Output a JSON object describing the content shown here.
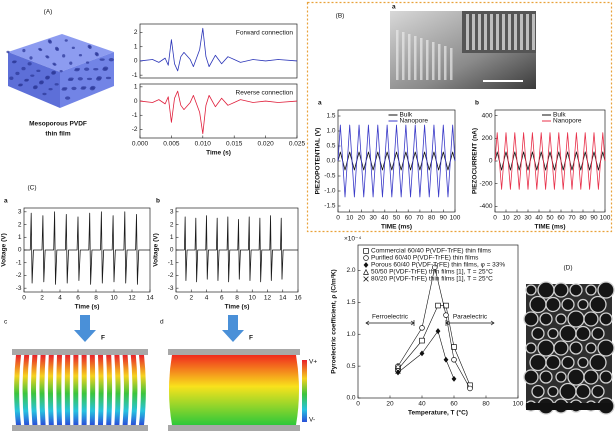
{
  "panel_labels": {
    "A": "(A)",
    "B": "(B)",
    "C": "(C)",
    "D": "(D)",
    "B_image": "a",
    "C_c": "c",
    "C_d": "d"
  },
  "film_caption": [
    "Mesoporous PVDF",
    "thin film"
  ],
  "force_labels": [
    "F",
    "F"
  ],
  "colorbar_labels": [
    "V+",
    "V-"
  ],
  "chart_data": [
    {
      "type": "line",
      "xlim": [
        0,
        0.025
      ],
      "ylim": [
        -1.2,
        2.6
      ],
      "yticks": [
        -1,
        0,
        1,
        2
      ],
      "series": [
        {
          "name": "Forward connection",
          "color": "#2b35b8",
          "x": [
            0,
            0.002,
            0.003,
            0.004,
            0.0045,
            0.005,
            0.0055,
            0.006,
            0.0065,
            0.007,
            0.008,
            0.0085,
            0.009,
            0.0095,
            0.01,
            0.0105,
            0.011,
            0.012,
            0.013,
            0.014,
            0.015,
            0.016,
            0.018,
            0.02,
            0.022,
            0.025
          ],
          "values": [
            0,
            0.1,
            -0.1,
            0.2,
            -0.3,
            1.5,
            -0.2,
            -0.7,
            0.3,
            0.6,
            0.1,
            -0.4,
            0.2,
            0.8,
            2.3,
            0.3,
            -0.4,
            0.4,
            -0.2,
            0.3,
            0.1,
            -0.1,
            0.1,
            0,
            0.1,
            0
          ]
        }
      ]
    },
    {
      "type": "line",
      "xlabel": "Time (s)",
      "xlim": [
        0,
        0.025
      ],
      "ylim": [
        -2.6,
        1.2
      ],
      "yticks": [
        -2,
        -1,
        0,
        1
      ],
      "xticks": [
        {
          "value": 0,
          "label": "0.000"
        },
        0.005,
        {
          "value": 0.01,
          "label": "0.010"
        },
        0.015,
        {
          "value": 0.02,
          "label": "0.020"
        },
        0.025
      ],
      "series": [
        {
          "name": "Reverse connection",
          "color": "#e0203c",
          "x": [
            0,
            0.002,
            0.003,
            0.004,
            0.0045,
            0.005,
            0.0055,
            0.006,
            0.0065,
            0.007,
            0.008,
            0.0085,
            0.009,
            0.0095,
            0.01,
            0.0105,
            0.011,
            0.012,
            0.013,
            0.014,
            0.015,
            0.016,
            0.018,
            0.02,
            0.022,
            0.025
          ],
          "values": [
            0,
            -0.1,
            0.1,
            -0.2,
            0.3,
            -1.5,
            0.2,
            0.7,
            -0.3,
            -0.6,
            -0.1,
            0.4,
            -0.2,
            -0.8,
            -2.3,
            -0.3,
            0.4,
            -0.4,
            0.2,
            -0.3,
            -0.1,
            0.1,
            -0.1,
            0,
            -0.1,
            0
          ]
        }
      ]
    },
    {
      "type": "line",
      "label": "a",
      "xlabel": "TIME (ms)",
      "ylabel": "PIEZOPOTENTIAL (V)",
      "legend": "top",
      "xlim": [
        0,
        100
      ],
      "xticks": [
        0,
        10,
        20,
        30,
        40,
        50,
        60,
        70,
        80,
        90,
        100
      ],
      "ylim": [
        -1.7,
        1.7
      ],
      "yticks": [
        -1.5,
        {
          "value": -1,
          "label": "-1.0"
        },
        -0.5,
        {
          "value": 0,
          "label": "0.0"
        },
        0.5,
        {
          "value": 1,
          "label": "1.0"
        },
        1.5
      ],
      "x": [
        0,
        2,
        4,
        6,
        8,
        10,
        12,
        14,
        16,
        18,
        20,
        22,
        24,
        26,
        28,
        30,
        32,
        34,
        36,
        38,
        40,
        42,
        44,
        46,
        48,
        50,
        52,
        54,
        56,
        58,
        60,
        62,
        64,
        66,
        68,
        70,
        72,
        74,
        76,
        78,
        80,
        82,
        84,
        86,
        88,
        90,
        92,
        94,
        96,
        98,
        100
      ],
      "series": [
        {
          "name": "Bulk",
          "color": "#111111",
          "values": [
            0,
            0.3,
            0,
            -0.3,
            0,
            0.3,
            0,
            -0.3,
            0,
            0.3,
            0,
            -0.3,
            0,
            0.3,
            0,
            -0.3,
            0,
            0.3,
            0,
            -0.3,
            0,
            0.3,
            0,
            -0.3,
            0,
            0.3,
            0,
            -0.3,
            0,
            0.3,
            0,
            -0.3,
            0,
            0.3,
            0,
            -0.3,
            0,
            0.3,
            0,
            -0.3,
            0,
            0.3,
            0,
            -0.3,
            0,
            0.3,
            0,
            -0.3,
            0,
            0.3,
            0
          ]
        },
        {
          "name": "Nanopore",
          "color": "#3a3ac8",
          "values": [
            0,
            1.2,
            0,
            -1.2,
            0,
            1.2,
            0,
            -1.2,
            0,
            1.2,
            0,
            -1.2,
            0,
            1.2,
            0,
            -1.2,
            0,
            1.2,
            0,
            -1.2,
            0,
            1.2,
            0,
            -1.2,
            0,
            1.2,
            0,
            -1.2,
            0,
            1.2,
            0,
            -1.2,
            0,
            1.2,
            0,
            -1.2,
            0,
            1.2,
            0,
            -1.2,
            0,
            1.2,
            0,
            -1.2,
            0,
            1.2,
            0,
            -1.2,
            0,
            1.2,
            0
          ]
        }
      ]
    },
    {
      "type": "line",
      "label": "b",
      "xlabel": "TIME (ms)",
      "ylabel": "PIEZOCURRENT (nA)",
      "legend": "top",
      "xlim": [
        0,
        100
      ],
      "xticks": [
        0,
        10,
        20,
        30,
        40,
        50,
        60,
        70,
        80,
        90,
        100
      ],
      "ylim": [
        -450,
        450
      ],
      "yticks": [
        -400,
        -200,
        0,
        200,
        400
      ],
      "x": [
        0,
        2,
        4,
        6,
        8,
        10,
        12,
        14,
        16,
        18,
        20,
        22,
        24,
        26,
        28,
        30,
        32,
        34,
        36,
        38,
        40,
        42,
        44,
        46,
        48,
        50,
        52,
        54,
        56,
        58,
        60,
        62,
        64,
        66,
        68,
        70,
        72,
        74,
        76,
        78,
        80,
        82,
        84,
        86,
        88,
        90,
        92,
        94,
        96,
        98,
        100
      ],
      "series": [
        {
          "name": "Bulk",
          "color": "#111111",
          "values": [
            0,
            80,
            0,
            -80,
            0,
            80,
            0,
            -80,
            0,
            80,
            0,
            -80,
            0,
            80,
            0,
            -80,
            0,
            80,
            0,
            -80,
            0,
            80,
            0,
            -80,
            0,
            80,
            0,
            -80,
            0,
            80,
            0,
            -80,
            0,
            80,
            0,
            -80,
            0,
            80,
            0,
            -80,
            0,
            80,
            0,
            -80,
            0,
            80,
            0,
            -80,
            0,
            80,
            0
          ]
        },
        {
          "name": "Nanopore",
          "color": "#e8304a",
          "values": [
            0,
            250,
            0,
            -250,
            0,
            250,
            0,
            -250,
            0,
            250,
            0,
            -250,
            0,
            250,
            0,
            -250,
            0,
            250,
            0,
            -250,
            0,
            250,
            0,
            -250,
            0,
            250,
            0,
            -250,
            0,
            250,
            0,
            -250,
            0,
            250,
            0,
            -250,
            0,
            250,
            0,
            -250,
            0,
            250,
            0,
            -250,
            0,
            250,
            0,
            -250,
            0,
            250,
            0
          ]
        }
      ]
    },
    {
      "type": "line",
      "label": "a",
      "xlabel": "Time (s)",
      "ylabel": "Voltage (V)",
      "xlim": [
        0,
        14
      ],
      "xticks": [
        0,
        2,
        4,
        6,
        8,
        10,
        12,
        14
      ],
      "ylim": [
        -3.3,
        3.3
      ],
      "yticks": [
        -3,
        -2,
        -1,
        0,
        1,
        2,
        3
      ],
      "series": [
        {
          "color": "#1a1a1a",
          "x": [
            0,
            0.7,
            0.8,
            0.9,
            1.05,
            2.0,
            2.1,
            2.2,
            2.35,
            3.3,
            3.4,
            3.5,
            3.65,
            4.6,
            4.7,
            4.8,
            4.95,
            5.9,
            6.0,
            6.1,
            6.25,
            7.2,
            7.3,
            7.4,
            7.55,
            8.5,
            8.6,
            8.7,
            8.85,
            9.8,
            9.9,
            10.0,
            10.15,
            11.1,
            11.2,
            11.3,
            11.45,
            12.4,
            12.5,
            12.6,
            12.75,
            14
          ],
          "values": [
            0,
            0,
            2.9,
            -2.6,
            0,
            0,
            2.7,
            -2.5,
            0,
            0,
            3.0,
            -2.7,
            0,
            0,
            2.8,
            -2.6,
            0,
            0,
            2.6,
            -2.4,
            0,
            0,
            2.9,
            -2.7,
            0,
            0,
            3.0,
            -2.6,
            0,
            0,
            2.7,
            -2.5,
            0,
            0,
            3.0,
            -2.6,
            0,
            0,
            2.8,
            -2.7,
            0,
            0
          ]
        }
      ]
    },
    {
      "type": "line",
      "label": "b",
      "xlabel": "Time (s)",
      "ylabel": "Voltage (V)",
      "xlim": [
        0,
        16
      ],
      "xticks": [
        0,
        2,
        4,
        6,
        8,
        10,
        12,
        14,
        16
      ],
      "ylim": [
        -3.3,
        3.3
      ],
      "yticks": [
        -3,
        -2,
        -1,
        0,
        1,
        2,
        3
      ],
      "series": [
        {
          "color": "#1a1a1a",
          "x": [
            0,
            1.1,
            1.2,
            1.3,
            1.45,
            2.5,
            2.6,
            2.7,
            2.85,
            3.9,
            4.0,
            4.1,
            4.25,
            5.3,
            5.4,
            5.5,
            5.65,
            6.7,
            6.8,
            6.9,
            7.05,
            8.1,
            8.2,
            8.3,
            8.45,
            9.5,
            9.6,
            9.7,
            9.85,
            10.9,
            11.0,
            11.1,
            11.25,
            12.3,
            12.4,
            12.5,
            12.65,
            13.7,
            13.8,
            13.9,
            14.05,
            16
          ],
          "values": [
            0,
            0,
            2.6,
            -2.4,
            0,
            0,
            2.5,
            -2.5,
            0,
            0,
            2.7,
            -2.3,
            0,
            0,
            2.5,
            -2.4,
            0,
            0,
            2.6,
            -2.5,
            0,
            0,
            2.4,
            -2.3,
            0,
            0,
            2.6,
            -2.4,
            0,
            0,
            2.5,
            -2.5,
            0,
            0,
            2.7,
            -2.4,
            0,
            0,
            2.5,
            -2.3,
            0,
            0
          ]
        }
      ]
    },
    {
      "type": "scatter",
      "xlabel": "Temperature, T (°C)",
      "ylabel": "Pyroelectric coefficient, ρ (C/m²K)",
      "y_multiplier": "×10⁻⁴",
      "annotations": [
        "Ferroelectric",
        "Paraelectric"
      ],
      "legend": "top-left",
      "xlim": [
        0,
        100
      ],
      "xticks": [
        0,
        20,
        40,
        60,
        80,
        100
      ],
      "ylim": [
        0,
        2.4
      ],
      "yticks": [
        {
          "value": 0,
          "label": "0.0"
        },
        0.5,
        {
          "value": 1,
          "label": "1.0"
        },
        1.5,
        {
          "value": 2,
          "label": "2.0"
        }
      ],
      "series": [
        {
          "name": "Commercial 60/40 P(VDF-TrFE) thin films",
          "color": "#111111",
          "marker": "square",
          "x": [
            25,
            40,
            50,
            55,
            60,
            70
          ],
          "values": [
            0.45,
            0.9,
            1.45,
            1.45,
            0.8,
            0.2
          ]
        },
        {
          "name": "Purified 60/40 P(VDF-TrFE) thin films",
          "color": "#111111",
          "marker": "circle",
          "x": [
            25,
            40,
            48,
            55,
            60,
            70
          ],
          "values": [
            0.5,
            1.1,
            2.05,
            1.3,
            0.6,
            0.15
          ]
        },
        {
          "name": "Porous 60/40 P(VDF-TrFE) thin films, φ = 33%",
          "color": "#111111",
          "marker": "diamond",
          "x": [
            25,
            40,
            50,
            55,
            60
          ],
          "values": [
            0.4,
            0.7,
            1.05,
            0.6,
            0.3
          ]
        },
        {
          "name": "50/50 P(VDF-TrFE) thin films [1], T = 25°C",
          "color": "#111111",
          "marker": "triangle",
          "x": [
            25
          ],
          "values": [
            0.5
          ]
        },
        {
          "name": "80/20 P(VDF-TrFE) thin films [1], T = 25°C",
          "color": "#111111",
          "marker": "x",
          "x": [
            25
          ],
          "values": [
            0.42
          ]
        }
      ]
    }
  ]
}
